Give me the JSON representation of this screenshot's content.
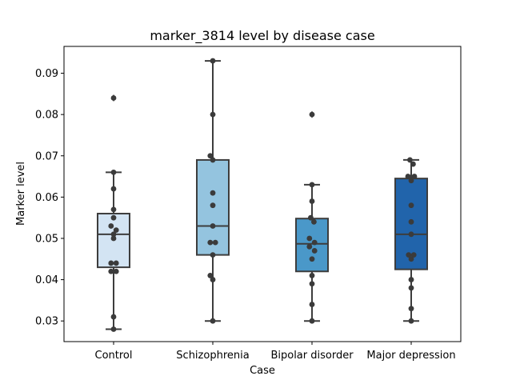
{
  "chart_data": {
    "type": "box",
    "title": "marker_3814 level by disease case",
    "xlabel": "Case",
    "ylabel": "Marker level",
    "ylim": [
      0.025,
      0.0965
    ],
    "yticks": [
      0.03,
      0.04,
      0.05,
      0.06,
      0.07,
      0.08,
      0.09
    ],
    "ytick_labels": [
      "0.03",
      "0.04",
      "0.05",
      "0.06",
      "0.07",
      "0.08",
      "0.09"
    ],
    "grid": false,
    "legend": "none",
    "categories": [
      "Control",
      "Schizophrenia",
      "Bipolar disorder",
      "Major depression"
    ],
    "colors": [
      "#d3e4f3",
      "#94c4df",
      "#4a98c9",
      "#2164ab"
    ],
    "edge_color": "#3d3d3d",
    "point_color": "#3b3b3b",
    "boxes": [
      {
        "q1": 0.043,
        "median": 0.051,
        "q3": 0.056,
        "whisker_low": 0.028,
        "whisker_high": 0.066,
        "outliers": [
          0.084
        ]
      },
      {
        "q1": 0.046,
        "median": 0.053,
        "q3": 0.069,
        "whisker_low": 0.03,
        "whisker_high": 0.093,
        "outliers": []
      },
      {
        "q1": 0.042,
        "median": 0.0487,
        "q3": 0.0548,
        "whisker_low": 0.03,
        "whisker_high": 0.063,
        "outliers": [
          0.08
        ]
      },
      {
        "q1": 0.0425,
        "median": 0.051,
        "q3": 0.0645,
        "whisker_low": 0.03,
        "whisker_high": 0.069,
        "outliers": []
      }
    ],
    "points": [
      [
        0.084,
        0.066,
        0.062,
        0.057,
        0.055,
        0.053,
        0.052,
        0.051,
        0.05,
        0.044,
        0.044,
        0.042,
        0.042,
        0.031,
        0.028
      ],
      [
        0.093,
        0.08,
        0.07,
        0.069,
        0.061,
        0.058,
        0.053,
        0.049,
        0.049,
        0.046,
        0.041,
        0.04,
        0.03
      ],
      [
        0.08,
        0.063,
        0.059,
        0.055,
        0.054,
        0.05,
        0.049,
        0.048,
        0.047,
        0.045,
        0.041,
        0.039,
        0.034,
        0.03
      ],
      [
        0.069,
        0.068,
        0.065,
        0.065,
        0.064,
        0.058,
        0.054,
        0.051,
        0.046,
        0.046,
        0.045,
        0.04,
        0.038,
        0.033,
        0.03
      ]
    ],
    "point_offsets": [
      [
        0,
        0,
        0,
        0,
        0,
        -0.4,
        0.4,
        0,
        0,
        -0.4,
        0.4,
        -0.4,
        0.4,
        0,
        0
      ],
      [
        0,
        0,
        -0.4,
        0,
        0,
        0,
        0,
        -0.4,
        0.4,
        0,
        -0.4,
        0,
        0
      ],
      [
        0,
        0,
        0,
        -0.2,
        0.3,
        -0.4,
        0.4,
        -0.4,
        0.4,
        0,
        0,
        0,
        0,
        0
      ],
      [
        -0.2,
        0.3,
        -0.5,
        0.5,
        0,
        0,
        0,
        0,
        -0.4,
        0.4,
        0,
        0,
        0,
        0,
        0
      ]
    ]
  }
}
